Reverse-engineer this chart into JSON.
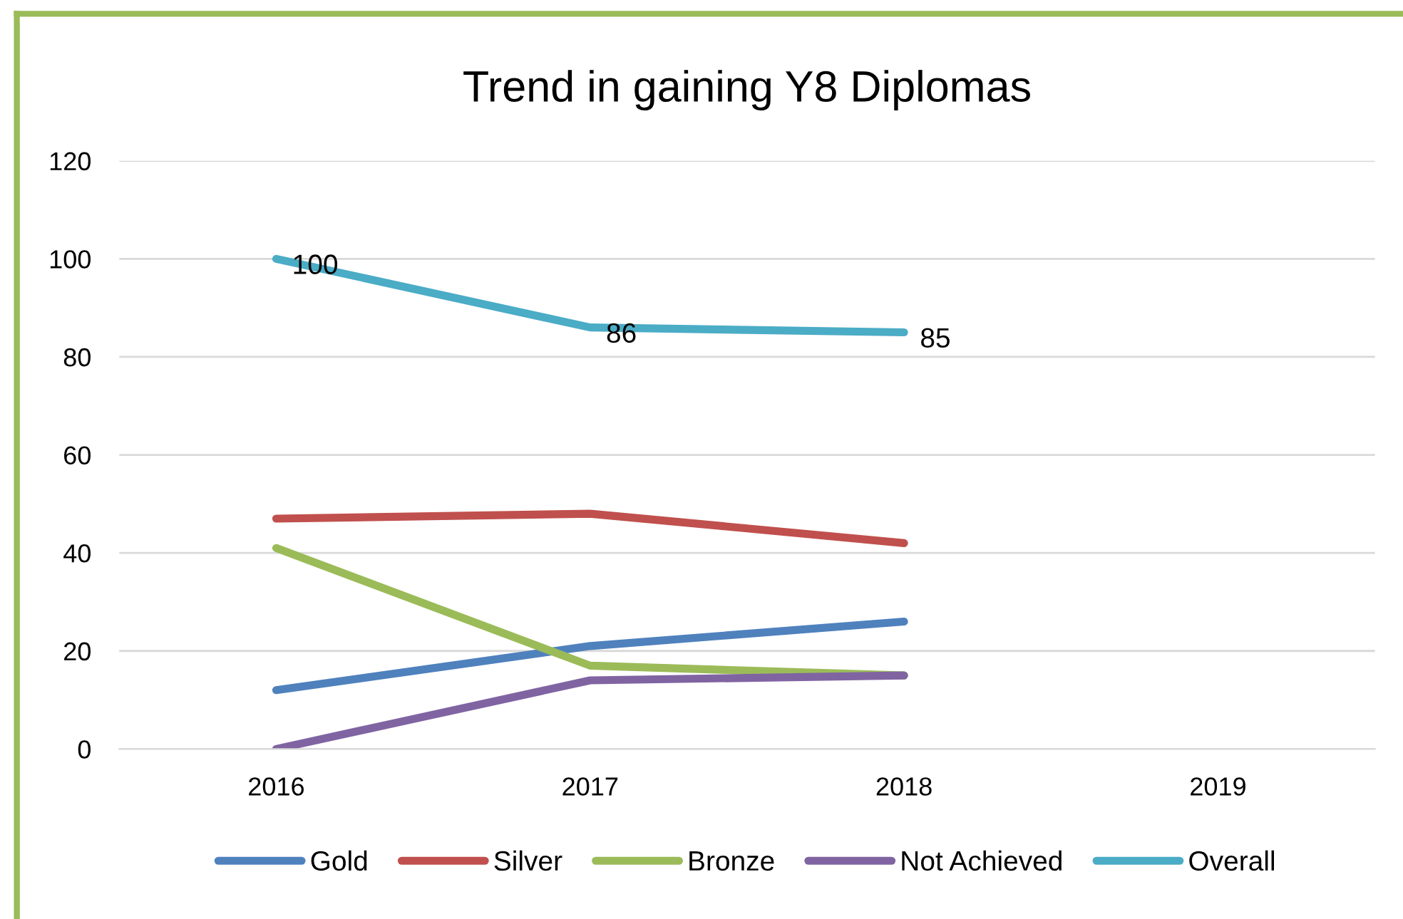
{
  "chart_data": {
    "type": "line",
    "title": "Trend in gaining Y8 Diplomas",
    "categories": [
      "2016",
      "2017",
      "2018",
      "2019"
    ],
    "series": [
      {
        "name": "Gold",
        "color": "#4f81bd",
        "values": [
          12,
          21,
          26,
          null
        ]
      },
      {
        "name": "Silver",
        "color": "#c0504d",
        "values": [
          47,
          48,
          42,
          null
        ]
      },
      {
        "name": "Bronze",
        "color": "#9bbb59",
        "values": [
          41,
          17,
          15,
          null
        ]
      },
      {
        "name": "Not Achieved",
        "color": "#8064a2",
        "values": [
          0,
          14,
          15,
          null
        ]
      },
      {
        "name": "Overall",
        "color": "#4bacc6",
        "values": [
          100,
          86,
          85,
          null
        ],
        "value_labels": [
          "100",
          "86",
          "85",
          null
        ]
      }
    ],
    "ylim": [
      0,
      120
    ],
    "yticks": [
      0,
      20,
      40,
      60,
      80,
      100,
      120
    ],
    "grid": "y",
    "legend": "bottom",
    "marker": "none",
    "line_style": "solid"
  }
}
